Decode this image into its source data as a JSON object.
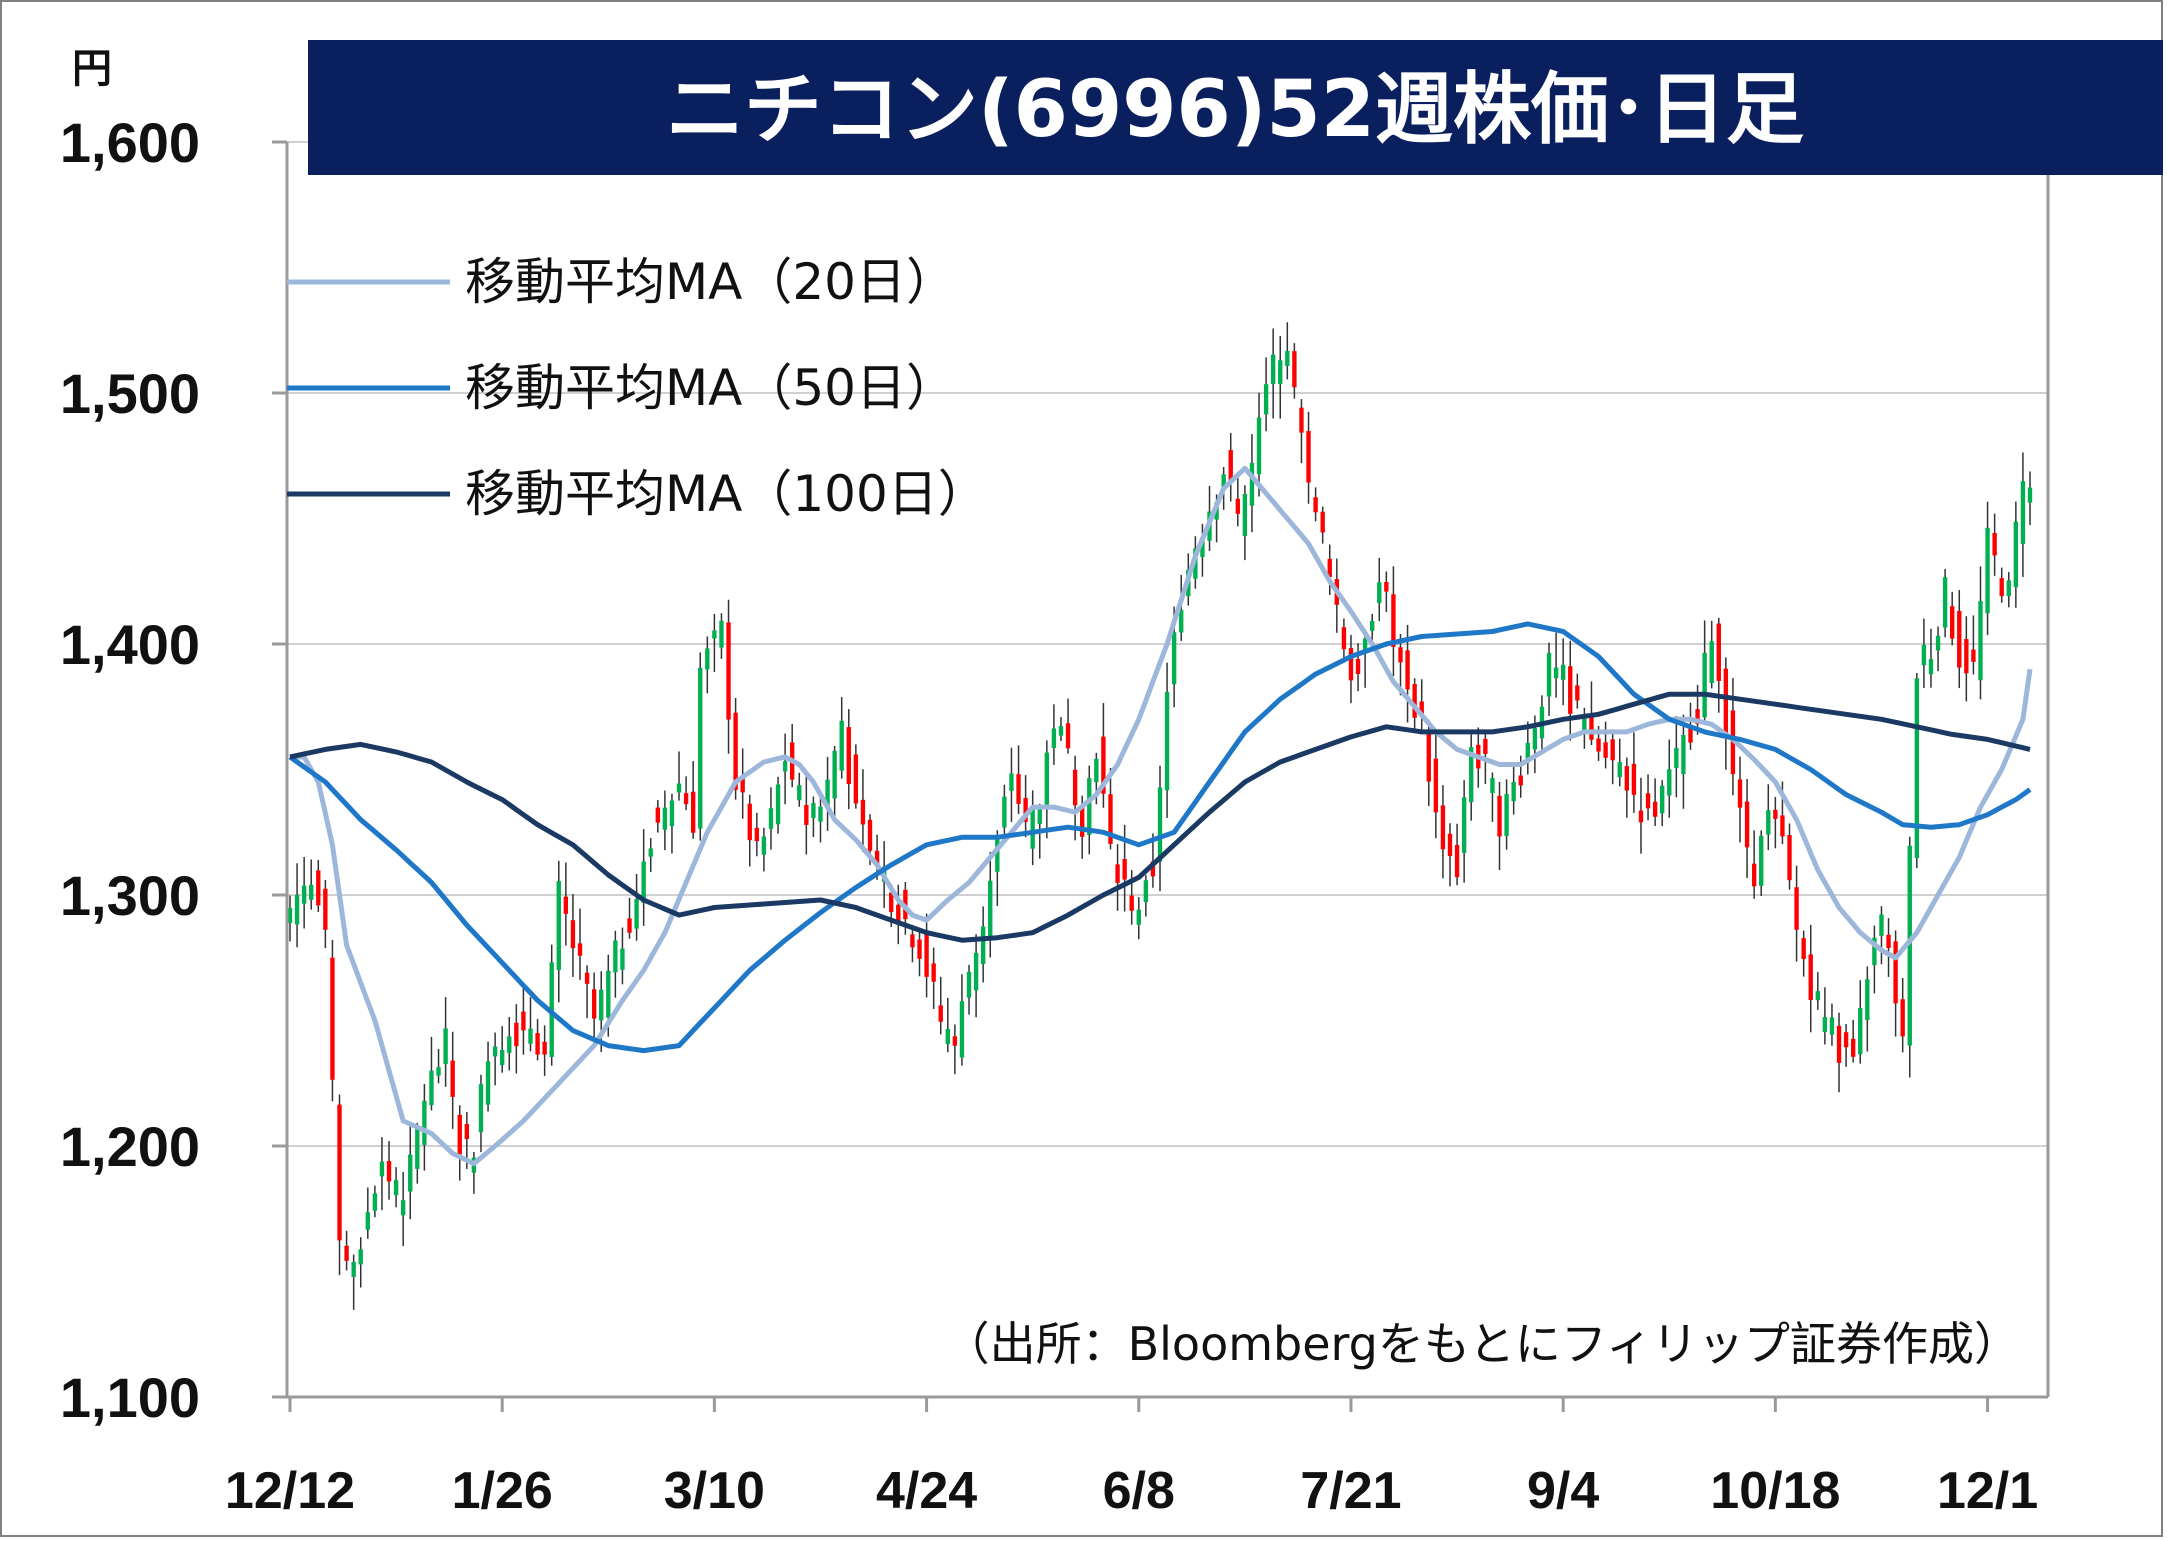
{
  "chart_data": {
    "type": "candlestick",
    "title": "ニチコン(6996)52週株価･日足",
    "unit_label": "円",
    "source": "（出所：Bloombergをもとにフィリップ証券作成）",
    "ylim": [
      1100,
      1600
    ],
    "y_ticks": [
      {
        "value": 1100,
        "label": "1,100"
      },
      {
        "value": 1200,
        "label": "1,200"
      },
      {
        "value": 1300,
        "label": "1,300"
      },
      {
        "value": 1400,
        "label": "1,400"
      },
      {
        "value": 1500,
        "label": "1,500"
      },
      {
        "value": 1600,
        "label": "1,600"
      }
    ],
    "x_ticks": [
      {
        "index": 0,
        "label": "12/12"
      },
      {
        "index": 30,
        "label": "1/26"
      },
      {
        "index": 60,
        "label": "3/10"
      },
      {
        "index": 90,
        "label": "4/24"
      },
      {
        "index": 120,
        "label": "6/8"
      },
      {
        "index": 150,
        "label": "7/21"
      },
      {
        "index": 180,
        "label": "9/4"
      },
      {
        "index": 210,
        "label": "10/18"
      },
      {
        "index": 240,
        "label": "12/1"
      }
    ],
    "up_color": "#00b050",
    "down_color": "#ff0000",
    "legend": [
      {
        "label": "移動平均MA（20日）",
        "color": "#9db7db"
      },
      {
        "label": "移動平均MA（50日）",
        "color": "#1f77c8"
      },
      {
        "label": "移動平均MA（100日）",
        "color": "#1b3a63"
      }
    ],
    "close_anchors": [
      [
        0,
        1295
      ],
      [
        3,
        1310
      ],
      [
        5,
        1280
      ],
      [
        7,
        1160
      ],
      [
        9,
        1150
      ],
      [
        11,
        1175
      ],
      [
        13,
        1195
      ],
      [
        16,
        1175
      ],
      [
        19,
        1220
      ],
      [
        22,
        1240
      ],
      [
        24,
        1200
      ],
      [
        26,
        1200
      ],
      [
        28,
        1240
      ],
      [
        31,
        1245
      ],
      [
        34,
        1250
      ],
      [
        36,
        1235
      ],
      [
        38,
        1300
      ],
      [
        40,
        1280
      ],
      [
        43,
        1250
      ],
      [
        46,
        1275
      ],
      [
        49,
        1300
      ],
      [
        52,
        1330
      ],
      [
        55,
        1345
      ],
      [
        57,
        1330
      ],
      [
        58,
        1390
      ],
      [
        61,
        1405
      ],
      [
        63,
        1345
      ],
      [
        66,
        1315
      ],
      [
        68,
        1330
      ],
      [
        70,
        1355
      ],
      [
        73,
        1330
      ],
      [
        76,
        1345
      ],
      [
        78,
        1370
      ],
      [
        80,
        1330
      ],
      [
        83,
        1310
      ],
      [
        86,
        1295
      ],
      [
        89,
        1280
      ],
      [
        92,
        1250
      ],
      [
        94,
        1240
      ],
      [
        96,
        1270
      ],
      [
        98,
        1290
      ],
      [
        100,
        1320
      ],
      [
        102,
        1350
      ],
      [
        104,
        1325
      ],
      [
        106,
        1340
      ],
      [
        108,
        1370
      ],
      [
        110,
        1355
      ],
      [
        112,
        1330
      ],
      [
        114,
        1360
      ],
      [
        116,
        1315
      ],
      [
        118,
        1305
      ],
      [
        120,
        1290
      ],
      [
        122,
        1310
      ],
      [
        124,
        1380
      ],
      [
        126,
        1420
      ],
      [
        128,
        1440
      ],
      [
        130,
        1455
      ],
      [
        132,
        1470
      ],
      [
        134,
        1450
      ],
      [
        136,
        1470
      ],
      [
        138,
        1500
      ],
      [
        140,
        1520
      ],
      [
        142,
        1500
      ],
      [
        144,
        1460
      ],
      [
        146,
        1440
      ],
      [
        148,
        1410
      ],
      [
        150,
        1390
      ],
      [
        152,
        1400
      ],
      [
        154,
        1430
      ],
      [
        156,
        1400
      ],
      [
        158,
        1380
      ],
      [
        160,
        1370
      ],
      [
        162,
        1330
      ],
      [
        165,
        1310
      ],
      [
        167,
        1360
      ],
      [
        169,
        1350
      ],
      [
        171,
        1330
      ],
      [
        174,
        1350
      ],
      [
        176,
        1370
      ],
      [
        178,
        1390
      ],
      [
        180,
        1385
      ],
      [
        183,
        1365
      ],
      [
        186,
        1355
      ],
      [
        189,
        1345
      ],
      [
        192,
        1330
      ],
      [
        195,
        1345
      ],
      [
        197,
        1360
      ],
      [
        199,
        1375
      ],
      [
        201,
        1405
      ],
      [
        203,
        1370
      ],
      [
        205,
        1330
      ],
      [
        207,
        1310
      ],
      [
        209,
        1330
      ],
      [
        211,
        1320
      ],
      [
        213,
        1285
      ],
      [
        215,
        1265
      ],
      [
        217,
        1250
      ],
      [
        219,
        1240
      ],
      [
        221,
        1230
      ],
      [
        223,
        1270
      ],
      [
        225,
        1290
      ],
      [
        227,
        1260
      ],
      [
        228,
        1240
      ],
      [
        230,
        1390
      ],
      [
        232,
        1400
      ],
      [
        234,
        1420
      ],
      [
        236,
        1395
      ],
      [
        238,
        1390
      ],
      [
        240,
        1440
      ],
      [
        242,
        1425
      ],
      [
        243,
        1420
      ],
      [
        245,
        1470
      ],
      [
        246,
        1460
      ]
    ],
    "n_bars": 247,
    "ma20_anchors": [
      [
        0,
        1355
      ],
      [
        2,
        1355
      ],
      [
        4,
        1345
      ],
      [
        6,
        1320
      ],
      [
        8,
        1280
      ],
      [
        12,
        1250
      ],
      [
        16,
        1210
      ],
      [
        20,
        1205
      ],
      [
        23,
        1197
      ],
      [
        26,
        1193
      ],
      [
        29,
        1200
      ],
      [
        33,
        1210
      ],
      [
        38,
        1225
      ],
      [
        43,
        1240
      ],
      [
        47,
        1258
      ],
      [
        50,
        1270
      ],
      [
        53,
        1285
      ],
      [
        56,
        1305
      ],
      [
        59,
        1325
      ],
      [
        63,
        1345
      ],
      [
        67,
        1353
      ],
      [
        70,
        1355
      ],
      [
        72,
        1352
      ],
      [
        74,
        1345
      ],
      [
        77,
        1330
      ],
      [
        80,
        1322
      ],
      [
        83,
        1312
      ],
      [
        86,
        1298
      ],
      [
        88,
        1292
      ],
      [
        90,
        1290
      ],
      [
        93,
        1298
      ],
      [
        96,
        1305
      ],
      [
        99,
        1315
      ],
      [
        102,
        1325
      ],
      [
        105,
        1335
      ],
      [
        108,
        1335
      ],
      [
        111,
        1333
      ],
      [
        114,
        1340
      ],
      [
        117,
        1352
      ],
      [
        120,
        1370
      ],
      [
        124,
        1400
      ],
      [
        128,
        1435
      ],
      [
        132,
        1462
      ],
      [
        135,
        1470
      ],
      [
        138,
        1460
      ],
      [
        141,
        1450
      ],
      [
        144,
        1440
      ],
      [
        147,
        1425
      ],
      [
        150,
        1413
      ],
      [
        153,
        1400
      ],
      [
        156,
        1385
      ],
      [
        159,
        1375
      ],
      [
        162,
        1365
      ],
      [
        165,
        1358
      ],
      [
        168,
        1355
      ],
      [
        171,
        1352
      ],
      [
        174,
        1352
      ],
      [
        177,
        1357
      ],
      [
        180,
        1362
      ],
      [
        183,
        1365
      ],
      [
        186,
        1365
      ],
      [
        189,
        1365
      ],
      [
        192,
        1368
      ],
      [
        195,
        1370
      ],
      [
        198,
        1370
      ],
      [
        201,
        1368
      ],
      [
        204,
        1362
      ],
      [
        207,
        1354
      ],
      [
        210,
        1345
      ],
      [
        213,
        1330
      ],
      [
        216,
        1310
      ],
      [
        219,
        1295
      ],
      [
        222,
        1285
      ],
      [
        225,
        1278
      ],
      [
        227,
        1275
      ],
      [
        230,
        1285
      ],
      [
        233,
        1300
      ],
      [
        236,
        1315
      ],
      [
        239,
        1335
      ],
      [
        242,
        1350
      ],
      [
        245,
        1370
      ],
      [
        246,
        1390
      ]
    ],
    "ma50_anchors": [
      [
        0,
        1355
      ],
      [
        5,
        1345
      ],
      [
        10,
        1330
      ],
      [
        15,
        1318
      ],
      [
        20,
        1305
      ],
      [
        25,
        1288
      ],
      [
        30,
        1273
      ],
      [
        35,
        1258
      ],
      [
        40,
        1246
      ],
      [
        45,
        1240
      ],
      [
        50,
        1238
      ],
      [
        55,
        1240
      ],
      [
        60,
        1255
      ],
      [
        65,
        1270
      ],
      [
        70,
        1282
      ],
      [
        75,
        1293
      ],
      [
        80,
        1303
      ],
      [
        85,
        1312
      ],
      [
        90,
        1320
      ],
      [
        95,
        1323
      ],
      [
        100,
        1323
      ],
      [
        105,
        1325
      ],
      [
        110,
        1327
      ],
      [
        115,
        1325
      ],
      [
        120,
        1320
      ],
      [
        125,
        1325
      ],
      [
        130,
        1345
      ],
      [
        135,
        1365
      ],
      [
        140,
        1378
      ],
      [
        145,
        1388
      ],
      [
        150,
        1395
      ],
      [
        155,
        1400
      ],
      [
        160,
        1403
      ],
      [
        165,
        1404
      ],
      [
        170,
        1405
      ],
      [
        175,
        1408
      ],
      [
        180,
        1405
      ],
      [
        185,
        1395
      ],
      [
        190,
        1380
      ],
      [
        195,
        1370
      ],
      [
        200,
        1365
      ],
      [
        205,
        1362
      ],
      [
        210,
        1358
      ],
      [
        215,
        1350
      ],
      [
        220,
        1340
      ],
      [
        225,
        1333
      ],
      [
        228,
        1328
      ],
      [
        232,
        1327
      ],
      [
        236,
        1328
      ],
      [
        240,
        1332
      ],
      [
        244,
        1338
      ],
      [
        246,
        1342
      ]
    ],
    "ma100_anchors": [
      [
        0,
        1355
      ],
      [
        5,
        1358
      ],
      [
        10,
        1360
      ],
      [
        15,
        1357
      ],
      [
        20,
        1353
      ],
      [
        25,
        1345
      ],
      [
        30,
        1338
      ],
      [
        35,
        1328
      ],
      [
        40,
        1320
      ],
      [
        45,
        1308
      ],
      [
        50,
        1298
      ],
      [
        55,
        1292
      ],
      [
        60,
        1295
      ],
      [
        65,
        1296
      ],
      [
        70,
        1297
      ],
      [
        75,
        1298
      ],
      [
        80,
        1295
      ],
      [
        85,
        1290
      ],
      [
        90,
        1285
      ],
      [
        95,
        1282
      ],
      [
        100,
        1283
      ],
      [
        105,
        1285
      ],
      [
        110,
        1292
      ],
      [
        115,
        1300
      ],
      [
        120,
        1307
      ],
      [
        125,
        1320
      ],
      [
        130,
        1333
      ],
      [
        135,
        1345
      ],
      [
        140,
        1353
      ],
      [
        145,
        1358
      ],
      [
        150,
        1363
      ],
      [
        155,
        1367
      ],
      [
        160,
        1365
      ],
      [
        165,
        1365
      ],
      [
        170,
        1365
      ],
      [
        175,
        1367
      ],
      [
        180,
        1370
      ],
      [
        185,
        1372
      ],
      [
        190,
        1376
      ],
      [
        195,
        1380
      ],
      [
        200,
        1380
      ],
      [
        205,
        1378
      ],
      [
        210,
        1376
      ],
      [
        215,
        1374
      ],
      [
        220,
        1372
      ],
      [
        225,
        1370
      ],
      [
        230,
        1367
      ],
      [
        235,
        1364
      ],
      [
        240,
        1362
      ],
      [
        246,
        1358
      ]
    ]
  }
}
